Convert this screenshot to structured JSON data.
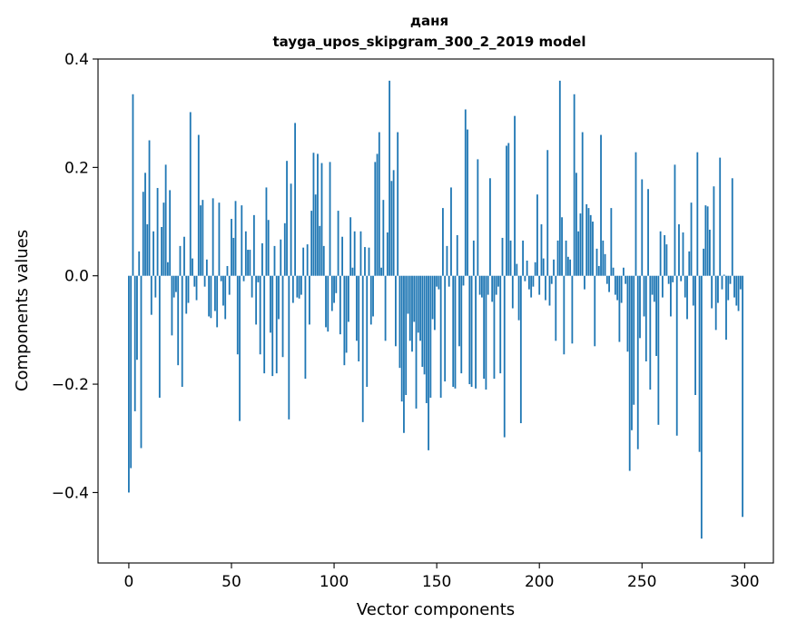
{
  "chart_data": {
    "type": "bar",
    "title": "даня",
    "subtitle": "tayga_upos_skipgram_300_2_2019 model",
    "xlabel": "Vector components",
    "ylabel": "Components values",
    "xlim": [
      -15,
      314
    ],
    "ylim": [
      -0.53,
      0.4
    ],
    "xticks": [
      0,
      50,
      100,
      150,
      200,
      250,
      300
    ],
    "yticks": [
      -0.4,
      -0.2,
      0.0,
      0.2,
      0.4
    ],
    "xtick_labels": [
      "0",
      "50",
      "100",
      "150",
      "200",
      "250",
      "300"
    ],
    "ytick_labels": [
      "−0.4",
      "−0.2",
      "0.0",
      "0.2",
      "0.4"
    ],
    "bar_color": "#1f77b4",
    "grid": false,
    "x_start": 0,
    "values": [
      -0.4,
      -0.355,
      0.335,
      -0.25,
      -0.155,
      0.045,
      -0.318,
      0.155,
      0.19,
      0.095,
      0.25,
      -0.072,
      0.082,
      -0.04,
      0.162,
      -0.225,
      0.09,
      0.135,
      0.205,
      0.025,
      0.158,
      -0.11,
      -0.04,
      -0.03,
      -0.165,
      0.055,
      -0.205,
      0.072,
      -0.07,
      -0.05,
      0.302,
      0.032,
      -0.02,
      -0.045,
      0.26,
      0.13,
      0.14,
      -0.02,
      0.03,
      -0.075,
      -0.078,
      0.143,
      -0.065,
      -0.095,
      0.135,
      -0.01,
      -0.055,
      -0.08,
      0.018,
      -0.035,
      0.105,
      0.07,
      0.138,
      -0.145,
      -0.268,
      0.13,
      -0.01,
      0.082,
      0.048,
      0.048,
      -0.04,
      0.112,
      -0.09,
      -0.012,
      -0.145,
      0.06,
      -0.18,
      0.163,
      0.103,
      -0.105,
      -0.185,
      0.055,
      -0.18,
      -0.08,
      0.067,
      -0.15,
      0.097,
      0.212,
      -0.265,
      0.17,
      -0.05,
      0.282,
      -0.04,
      -0.042,
      -0.035,
      0.052,
      -0.19,
      0.058,
      -0.09,
      0.12,
      0.227,
      0.15,
      0.225,
      0.092,
      0.208,
      0.055,
      -0.095,
      -0.103,
      0.21,
      -0.065,
      -0.05,
      -0.032,
      0.12,
      -0.108,
      0.072,
      -0.165,
      -0.142,
      -0.085,
      0.108,
      0.015,
      0.082,
      -0.12,
      -0.158,
      0.082,
      -0.27,
      0.053,
      -0.205,
      0.052,
      -0.09,
      -0.075,
      0.21,
      0.225,
      0.265,
      0.015,
      0.14,
      -0.12,
      0.08,
      0.36,
      0.175,
      0.195,
      -0.13,
      0.265,
      -0.17,
      -0.232,
      -0.29,
      -0.22,
      -0.07,
      -0.12,
      -0.14,
      -0.085,
      -0.245,
      -0.105,
      -0.12,
      -0.168,
      -0.182,
      -0.235,
      -0.322,
      -0.225,
      -0.08,
      -0.1,
      -0.02,
      -0.025,
      -0.225,
      0.125,
      -0.195,
      0.055,
      -0.02,
      0.163,
      -0.205,
      -0.208,
      0.075,
      -0.13,
      -0.18,
      -0.018,
      0.307,
      0.27,
      -0.2,
      -0.205,
      0.065,
      -0.208,
      0.215,
      -0.035,
      -0.04,
      -0.19,
      -0.21,
      -0.035,
      0.18,
      -0.048,
      -0.19,
      -0.035,
      -0.02,
      -0.18,
      0.07,
      -0.298,
      0.24,
      0.245,
      0.065,
      -0.06,
      0.295,
      0.022,
      -0.082,
      -0.272,
      0.065,
      -0.01,
      0.028,
      -0.025,
      -0.04,
      -0.02,
      0.025,
      0.15,
      -0.035,
      0.095,
      0.032,
      -0.045,
      0.232,
      -0.055,
      -0.015,
      0.03,
      -0.12,
      0.065,
      0.36,
      0.108,
      -0.145,
      0.065,
      0.035,
      0.03,
      -0.125,
      0.335,
      0.19,
      0.082,
      0.115,
      0.265,
      -0.025,
      0.132,
      0.125,
      0.112,
      0.1,
      -0.13,
      0.05,
      0.018,
      0.26,
      0.065,
      0.04,
      -0.015,
      -0.03,
      0.125,
      0.015,
      -0.035,
      -0.045,
      -0.122,
      -0.05,
      0.015,
      -0.015,
      -0.14,
      -0.36,
      -0.285,
      -0.238,
      0.228,
      -0.32,
      -0.115,
      0.178,
      -0.075,
      -0.158,
      0.16,
      -0.21,
      -0.035,
      -0.048,
      -0.148,
      -0.275,
      0.082,
      -0.04,
      0.075,
      0.058,
      -0.015,
      -0.075,
      -0.012,
      0.205,
      -0.295,
      0.095,
      -0.01,
      0.08,
      -0.04,
      -0.08,
      0.045,
      0.135,
      -0.055,
      -0.22,
      0.228,
      -0.325,
      -0.485,
      0.05,
      0.13,
      0.128,
      0.085,
      -0.06,
      0.165,
      -0.1,
      -0.05,
      0.218,
      -0.025,
      0.002,
      -0.118,
      -0.045,
      -0.015,
      0.18,
      -0.04,
      -0.055,
      -0.065,
      -0.025,
      -0.445
    ]
  }
}
